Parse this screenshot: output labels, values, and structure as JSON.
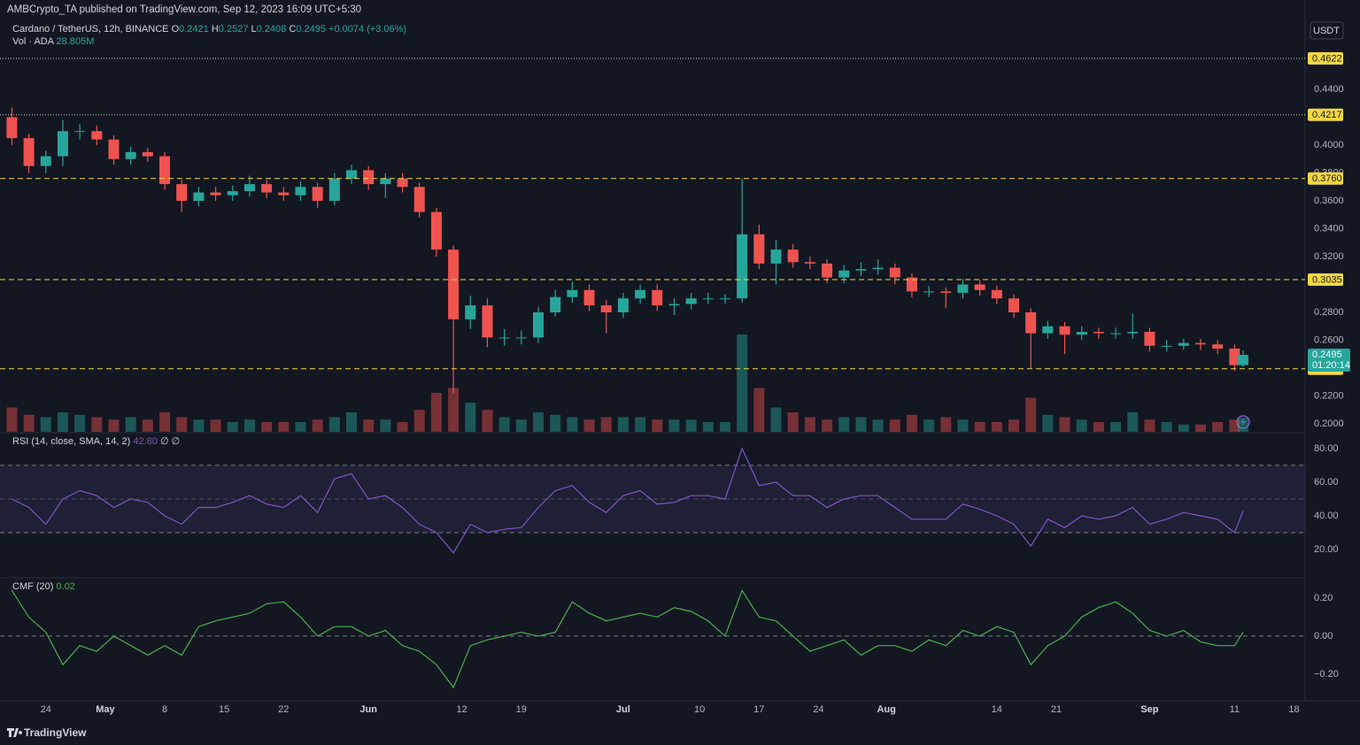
{
  "header": {
    "published": "AMBCrypto_TA published on TradingView.com, Sep 12, 2023 16:09 UTC+5:30",
    "currency": "USDT",
    "footer": "TradingView"
  },
  "chart_data": {
    "type": "candlestick",
    "title": "Cardano / TetherUS, 12h, BINANCE",
    "legend_keys": [
      "O",
      "H",
      "L",
      "C"
    ],
    "change": "+0.0074 (+3.06%)",
    "countdown": "01:20:14",
    "up_color": "#26a69a",
    "down_color": "#ef5350",
    "badge_color": "#f5d742",
    "grid": false,
    "x": [
      110,
      112,
      114,
      116,
      118,
      120,
      122,
      124,
      126,
      128,
      130,
      132,
      134,
      136,
      138,
      140,
      142,
      144,
      146,
      148,
      150,
      152,
      154,
      156,
      158,
      160,
      162,
      164,
      166,
      168,
      170,
      172,
      174,
      176,
      178,
      180,
      182,
      184,
      186,
      188,
      190,
      192,
      194,
      196,
      198,
      200,
      202,
      204,
      206,
      208,
      210,
      212,
      214,
      216,
      218,
      220,
      222,
      224,
      226,
      228,
      230,
      232,
      234,
      236,
      238,
      240,
      242,
      244,
      246,
      248,
      250,
      252,
      254,
      255
    ],
    "open": [
      0.42,
      0.405,
      0.385,
      0.392,
      0.41,
      0.41,
      0.404,
      0.39,
      0.395,
      0.392,
      0.372,
      0.36,
      0.366,
      0.364,
      0.367,
      0.372,
      0.366,
      0.364,
      0.37,
      0.36,
      0.376,
      0.382,
      0.372,
      0.376,
      0.37,
      0.352,
      0.325,
      0.275,
      0.285,
      0.262,
      0.262,
      0.262,
      0.28,
      0.291,
      0.296,
      0.285,
      0.28,
      0.29,
      0.296,
      0.285,
      0.286,
      0.29,
      0.29,
      0.29,
      0.336,
      0.315,
      0.325,
      0.316,
      0.315,
      0.305,
      0.31,
      0.311,
      0.312,
      0.305,
      0.295,
      0.295,
      0.294,
      0.3,
      0.296,
      0.29,
      0.28,
      0.265,
      0.27,
      0.264,
      0.266,
      0.265,
      0.265,
      0.266,
      0.256,
      0.256,
      0.258,
      0.257,
      0.254,
      0.2421
    ],
    "high": [
      0.427,
      0.408,
      0.396,
      0.418,
      0.415,
      0.414,
      0.407,
      0.399,
      0.398,
      0.395,
      0.375,
      0.37,
      0.37,
      0.371,
      0.378,
      0.375,
      0.37,
      0.374,
      0.373,
      0.38,
      0.386,
      0.385,
      0.38,
      0.38,
      0.373,
      0.355,
      0.328,
      0.292,
      0.29,
      0.268,
      0.267,
      0.284,
      0.296,
      0.302,
      0.3,
      0.289,
      0.294,
      0.3,
      0.3,
      0.29,
      0.294,
      0.294,
      0.293,
      0.376,
      0.343,
      0.332,
      0.329,
      0.32,
      0.318,
      0.314,
      0.316,
      0.318,
      0.315,
      0.308,
      0.299,
      0.298,
      0.304,
      0.303,
      0.299,
      0.293,
      0.283,
      0.274,
      0.273,
      0.27,
      0.269,
      0.269,
      0.279,
      0.269,
      0.26,
      0.261,
      0.261,
      0.26,
      0.257,
      0.2527
    ],
    "low": [
      0.4,
      0.38,
      0.38,
      0.385,
      0.404,
      0.4,
      0.386,
      0.386,
      0.388,
      0.368,
      0.352,
      0.356,
      0.36,
      0.36,
      0.363,
      0.362,
      0.36,
      0.36,
      0.355,
      0.357,
      0.372,
      0.368,
      0.362,
      0.366,
      0.348,
      0.32,
      0.222,
      0.268,
      0.255,
      0.256,
      0.257,
      0.258,
      0.277,
      0.287,
      0.281,
      0.265,
      0.276,
      0.286,
      0.281,
      0.278,
      0.282,
      0.286,
      0.286,
      0.287,
      0.311,
      0.3,
      0.312,
      0.311,
      0.301,
      0.301,
      0.306,
      0.307,
      0.3,
      0.291,
      0.291,
      0.283,
      0.29,
      0.292,
      0.286,
      0.276,
      0.24,
      0.261,
      0.25,
      0.26,
      0.261,
      0.261,
      0.261,
      0.252,
      0.252,
      0.253,
      0.253,
      0.25,
      0.238,
      0.2408
    ],
    "close": [
      0.405,
      0.385,
      0.392,
      0.41,
      0.41,
      0.404,
      0.39,
      0.395,
      0.392,
      0.372,
      0.36,
      0.366,
      0.364,
      0.367,
      0.372,
      0.366,
      0.364,
      0.37,
      0.36,
      0.376,
      0.382,
      0.372,
      0.376,
      0.37,
      0.352,
      0.325,
      0.275,
      0.285,
      0.262,
      0.262,
      0.262,
      0.28,
      0.291,
      0.296,
      0.285,
      0.28,
      0.29,
      0.296,
      0.285,
      0.286,
      0.29,
      0.29,
      0.29,
      0.336,
      0.315,
      0.325,
      0.316,
      0.315,
      0.305,
      0.31,
      0.311,
      0.312,
      0.305,
      0.295,
      0.295,
      0.294,
      0.3,
      0.296,
      0.29,
      0.28,
      0.265,
      0.27,
      0.264,
      0.266,
      0.265,
      0.265,
      0.266,
      0.256,
      0.256,
      0.258,
      0.257,
      0.254,
      0.2421,
      0.2495
    ],
    "volume_title": "Vol · ADA",
    "volume_value_label": "28.805M",
    "volume": [
      50,
      35,
      30,
      40,
      35,
      30,
      25,
      30,
      25,
      40,
      30,
      25,
      25,
      20,
      25,
      20,
      20,
      20,
      25,
      30,
      40,
      25,
      25,
      20,
      45,
      80,
      90,
      60,
      45,
      30,
      25,
      40,
      35,
      30,
      25,
      30,
      30,
      30,
      25,
      25,
      25,
      20,
      20,
      200,
      90,
      50,
      40,
      30,
      25,
      30,
      30,
      25,
      25,
      35,
      25,
      30,
      25,
      20,
      20,
      25,
      70,
      35,
      30,
      25,
      20,
      20,
      40,
      25,
      20,
      15,
      15,
      20,
      25,
      28.805
    ],
    "xlim": [
      108.6,
      262.1
    ],
    "xticks": [
      {
        "value": 114,
        "label": "24"
      },
      {
        "value": 121,
        "label": "May"
      },
      {
        "value": 128,
        "label": "8"
      },
      {
        "value": 135,
        "label": "15"
      },
      {
        "value": 142,
        "label": "22"
      },
      {
        "value": 152,
        "label": "Jun"
      },
      {
        "value": 163,
        "label": "12"
      },
      {
        "value": 170,
        "label": "19"
      },
      {
        "value": 182,
        "label": "Jul"
      },
      {
        "value": 191,
        "label": "10"
      },
      {
        "value": 198,
        "label": "17"
      },
      {
        "value": 205,
        "label": "24"
      },
      {
        "value": 213,
        "label": "Aug"
      },
      {
        "value": 226,
        "label": "14"
      },
      {
        "value": 233,
        "label": "21"
      },
      {
        "value": 244,
        "label": "Sep"
      },
      {
        "value": 254,
        "label": "11"
      },
      {
        "value": 261,
        "label": "18"
      }
    ],
    "ylim": [
      0.1943,
      0.4914
    ],
    "yticks": [
      {
        "value": 0.2,
        "label": "0.2000"
      },
      {
        "value": 0.22,
        "label": "0.2200"
      },
      {
        "value": 0.26,
        "label": "0.2600"
      },
      {
        "value": 0.28,
        "label": "0.2800"
      },
      {
        "value": 0.32,
        "label": "0.3200"
      },
      {
        "value": 0.34,
        "label": "0.3400"
      },
      {
        "value": 0.36,
        "label": "0.3600"
      },
      {
        "value": 0.38,
        "label": "0.3800"
      },
      {
        "value": 0.4,
        "label": "0.4000"
      },
      {
        "value": 0.44,
        "label": "0.4400"
      }
    ],
    "levels": [
      {
        "value": 0.4622,
        "style": "dotted",
        "color": "#c8c8c8"
      },
      {
        "value": 0.4217,
        "style": "dotted",
        "color": "#c8c8c8"
      },
      {
        "value": 0.376,
        "label": "0.3760",
        "style": "dashed",
        "color": "#f5d742"
      },
      {
        "value": 0.3035,
        "style": "dashed",
        "color": "#f5d742"
      },
      {
        "value": 0.2395,
        "style": "dashed",
        "color": "#f5d742"
      }
    ],
    "rsi": {
      "title": "RSI (14, close, SMA, 14, 2)",
      "last_value_label": "42.80",
      "extra": "∅ ∅",
      "color": "#7e57c2",
      "band": [
        30,
        70
      ],
      "midline": 50,
      "ylim": [
        3.7,
        88.9
      ],
      "yticks": [
        {
          "value": 80,
          "label": "80.00"
        },
        {
          "value": 60,
          "label": "60.00"
        },
        {
          "value": 40,
          "label": "40.00"
        },
        {
          "value": 20,
          "label": "20.00"
        }
      ],
      "values": [
        50,
        45,
        35,
        50,
        55,
        52,
        45,
        50,
        48,
        40,
        35,
        45,
        45,
        48,
        52,
        47,
        45,
        52,
        42,
        62,
        65,
        50,
        52,
        45,
        35,
        30,
        18,
        35,
        30,
        32,
        33,
        45,
        55,
        58,
        48,
        42,
        52,
        55,
        47,
        48,
        52,
        52,
        50,
        80,
        58,
        60,
        52,
        52,
        45,
        50,
        52,
        52,
        45,
        38,
        38,
        38,
        47,
        44,
        40,
        35,
        22,
        38,
        33,
        40,
        38,
        40,
        45,
        35,
        38,
        42,
        40,
        38,
        30,
        42.8
      ]
    },
    "cmf": {
      "title": "CMF (20)",
      "color": "#4caf50",
      "midline": 0,
      "ylim": [
        -0.34,
        0.302
      ],
      "yticks": [
        {
          "value": 0.2,
          "label": "0.20"
        },
        {
          "value": 0,
          "label": "0.00"
        },
        {
          "value": -0.2,
          "label": "−0.20"
        }
      ],
      "values": [
        0.24,
        0.1,
        0.02,
        -0.15,
        -0.05,
        -0.08,
        0.0,
        -0.05,
        -0.1,
        -0.05,
        -0.1,
        0.05,
        0.08,
        0.1,
        0.12,
        0.17,
        0.18,
        0.1,
        0.0,
        0.05,
        0.05,
        0.0,
        0.03,
        -0.05,
        -0.08,
        -0.15,
        -0.27,
        -0.05,
        -0.02,
        0.0,
        0.02,
        0.0,
        0.02,
        0.18,
        0.12,
        0.08,
        0.1,
        0.12,
        0.1,
        0.15,
        0.13,
        0.08,
        0.0,
        0.24,
        0.1,
        0.08,
        0.0,
        -0.08,
        -0.05,
        -0.02,
        -0.1,
        -0.05,
        -0.05,
        -0.08,
        -0.02,
        -0.05,
        0.03,
        0.0,
        0.05,
        0.02,
        -0.15,
        -0.05,
        0.0,
        0.1,
        0.15,
        0.18,
        0.12,
        0.03,
        0.0,
        0.03,
        -0.03,
        -0.05,
        -0.05,
        0.02
      ]
    }
  }
}
